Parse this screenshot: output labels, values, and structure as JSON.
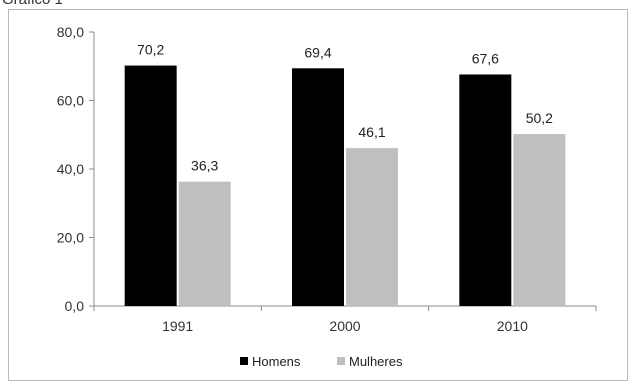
{
  "header": {
    "cut_title": "Gráfico 1"
  },
  "chart_data": {
    "type": "bar",
    "title": "",
    "xlabel": "",
    "ylabel": "",
    "categories": [
      "1991",
      "2000",
      "2010"
    ],
    "series": [
      {
        "name": "Homens",
        "values": [
          70.2,
          69.4,
          67.6
        ],
        "labels": [
          "70,2",
          "69,4",
          "67,6"
        ],
        "color": "#000000"
      },
      {
        "name": "Mulheres",
        "values": [
          36.3,
          46.1,
          50.2
        ],
        "labels": [
          "36,3",
          "46,1",
          "50,2"
        ],
        "color": "#bfbfbf"
      }
    ],
    "ylim": [
      0,
      80
    ],
    "yticks": [
      "0,0",
      "20,0",
      "40,0",
      "60,0",
      "80,0"
    ],
    "ytick_values": [
      0,
      20,
      40,
      60,
      80
    ],
    "grid": false,
    "legend_position": "bottom"
  }
}
